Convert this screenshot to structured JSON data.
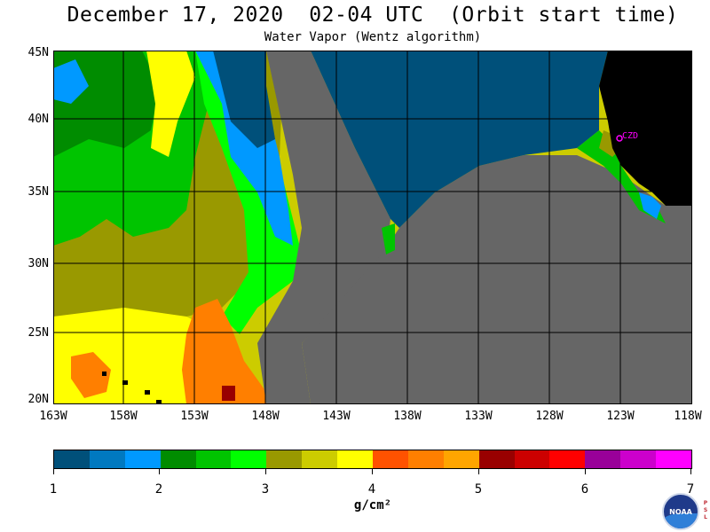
{
  "header": {
    "title": "December 17, 2020  02-04 UTC  (Orbit start time)",
    "subtitle": "Water Vapor (Wentz algorithm)"
  },
  "map": {
    "lat_labels": [
      "45N",
      "40N",
      "35N",
      "30N",
      "25N",
      "20N"
    ],
    "lon_labels": [
      "163W",
      "158W",
      "153W",
      "148W",
      "143W",
      "138W",
      "133W",
      "128W",
      "123W",
      "118W"
    ],
    "station_label": "CZD",
    "colors": {
      "land": "#000000",
      "no_data": "#666666",
      "gridline": "#000000",
      "station": "#ff00ff"
    }
  },
  "colorbar": {
    "tick_labels": [
      "1",
      "2",
      "3",
      "4",
      "5",
      "6",
      "7"
    ],
    "units": "g/cm²",
    "colors": [
      "#00507a",
      "#0079c0",
      "#0099ff",
      "#008c00",
      "#00c400",
      "#00ff00",
      "#999900",
      "#cccc00",
      "#ffff00",
      "#ff5200",
      "#ff7f00",
      "#ffa500",
      "#990000",
      "#cc0000",
      "#ff0000",
      "#990099",
      "#cc00cc",
      "#ff00ff"
    ]
  },
  "logo": {
    "text": "NOAA",
    "psl": "PSL"
  }
}
